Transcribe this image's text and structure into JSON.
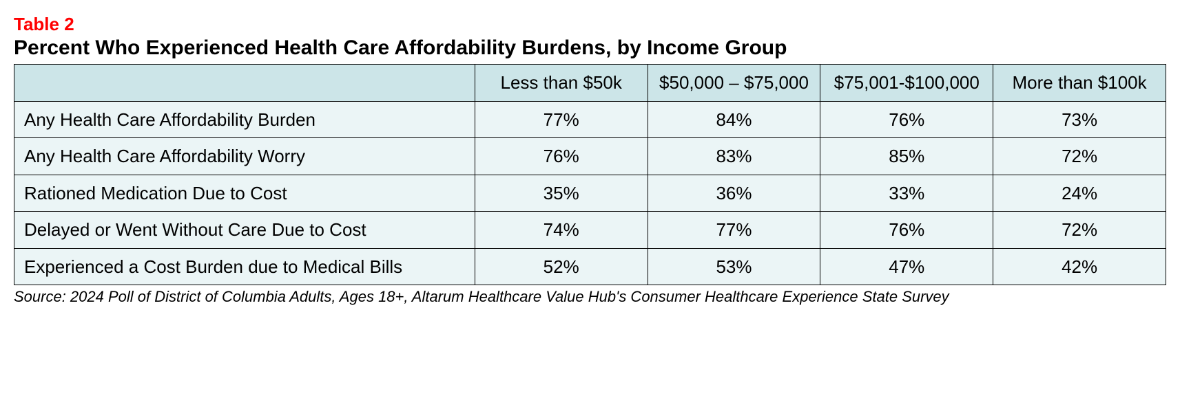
{
  "colors": {
    "label_color": "#ff0000",
    "header_bg": "#cce5e8",
    "body_bg": "#ebf5f6",
    "border_color": "#000000",
    "text_color": "#000000"
  },
  "table": {
    "label": "Table 2",
    "title": "Percent Who Experienced Health Care Affordability Burdens, by Income Group",
    "columns": [
      "",
      "Less than $50k",
      "$50,000 – $75,000",
      "$75,001-$100,000",
      "More than $100k"
    ],
    "rows": [
      {
        "label": "Any Health Care Affordability Burden",
        "values": [
          "77%",
          "84%",
          "76%",
          "73%"
        ]
      },
      {
        "label": "Any Health Care Affordability Worry",
        "values": [
          "76%",
          "83%",
          "85%",
          "72%"
        ]
      },
      {
        "label": "Rationed Medication Due to Cost",
        "values": [
          "35%",
          "36%",
          "33%",
          "24%"
        ]
      },
      {
        "label": "Delayed or Went Without Care Due to Cost",
        "values": [
          "74%",
          "77%",
          "76%",
          "72%"
        ]
      },
      {
        "label": "Experienced a Cost Burden due to Medical Bills",
        "values": [
          "52%",
          "53%",
          "47%",
          "42%"
        ]
      }
    ],
    "source": "Source: 2024 Poll of District of Columbia Adults, Ages 18+, Altarum Healthcare Value Hub's Consumer Healthcare Experience State Survey"
  },
  "typography": {
    "label_fontsize": 26,
    "title_fontsize": 30,
    "cell_fontsize": 26,
    "source_fontsize": 22
  }
}
